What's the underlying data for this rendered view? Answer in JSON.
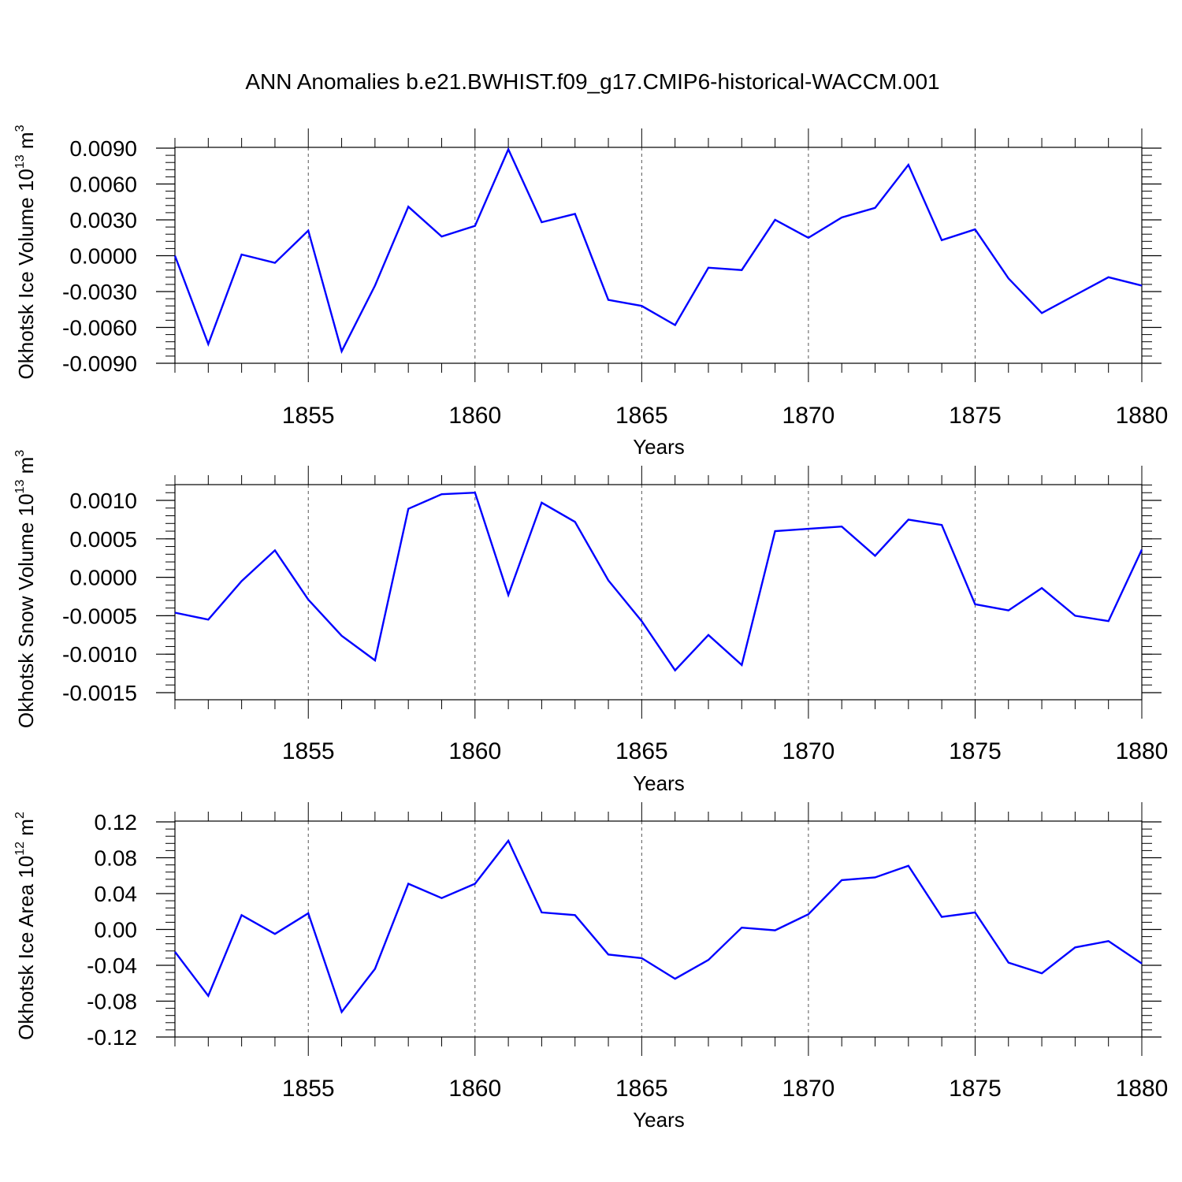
{
  "title": "ANN Anomalies b.e21.BWHIST.f09_g17.CMIP6-historical-WACCM.001",
  "line_color": "#0000ff",
  "chart_data": [
    {
      "type": "line",
      "ylabel_main": "Okhotsk Ice Volume 10",
      "ylabel_exp": "13",
      "ylabel_unit": " m",
      "ylabel_unit_exp": "3",
      "xlabel": "Years",
      "xlim": [
        1851,
        1880
      ],
      "ylim": [
        -0.009,
        0.009
      ],
      "yticks": [
        -0.009,
        -0.006,
        -0.003,
        0.0,
        0.003,
        0.006,
        0.009
      ],
      "ytick_labels": [
        "-0.0090",
        "-0.0060",
        "-0.0030",
        "0.0000",
        "0.0030",
        "0.0060",
        "0.0090"
      ],
      "yminor_step": 0.0006,
      "xticks": [
        1855,
        1860,
        1865,
        1870,
        1875,
        1880
      ],
      "xtick_labels": [
        "1855",
        "1860",
        "1865",
        "1870",
        "1875",
        "1880"
      ],
      "x": [
        1851,
        1852,
        1853,
        1854,
        1855,
        1856,
        1857,
        1858,
        1859,
        1860,
        1861,
        1862,
        1863,
        1864,
        1865,
        1866,
        1867,
        1868,
        1869,
        1870,
        1871,
        1872,
        1873,
        1874,
        1875,
        1876,
        1877,
        1878,
        1879,
        1880
      ],
      "values": [
        0.0,
        -0.0074,
        0.0001,
        -0.0006,
        0.0021,
        -0.008,
        -0.0025,
        0.0041,
        0.0016,
        0.0025,
        0.0089,
        0.0028,
        0.0035,
        -0.0037,
        -0.0042,
        -0.0058,
        -0.001,
        -0.0012,
        0.003,
        0.0015,
        0.0032,
        0.004,
        0.0076,
        0.0013,
        0.0022,
        -0.0019,
        -0.0048,
        -0.0033,
        -0.0018,
        -0.0025
      ]
    },
    {
      "type": "line",
      "ylabel_main": "Okhotsk Snow Volume 10",
      "ylabel_exp": "13",
      "ylabel_unit": " m",
      "ylabel_unit_exp": "3",
      "xlabel": "Years",
      "xlim": [
        1851,
        1880
      ],
      "ylim": [
        -0.0016,
        0.0012
      ],
      "yticks": [
        -0.0015,
        -0.001,
        -0.0005,
        0.0,
        0.0005,
        0.001
      ],
      "ytick_labels": [
        "-0.0015",
        "-0.0010",
        "-0.0005",
        "0.0000",
        "0.0005",
        "0.0010"
      ],
      "yminor_step": 0.0001,
      "xticks": [
        1855,
        1860,
        1865,
        1870,
        1875,
        1880
      ],
      "xtick_labels": [
        "1855",
        "1860",
        "1865",
        "1870",
        "1875",
        "1880"
      ],
      "x": [
        1851,
        1852,
        1853,
        1854,
        1855,
        1856,
        1857,
        1858,
        1859,
        1860,
        1861,
        1862,
        1863,
        1864,
        1865,
        1866,
        1867,
        1868,
        1869,
        1870,
        1871,
        1872,
        1873,
        1874,
        1875,
        1876,
        1877,
        1878,
        1879,
        1880
      ],
      "values": [
        -0.00046,
        -0.00055,
        -5e-05,
        0.00035,
        -0.00029,
        -0.00076,
        -0.00108,
        0.00089,
        0.00108,
        0.0011,
        -0.00023,
        0.00097,
        0.00072,
        -4e-05,
        -0.00057,
        -0.00121,
        -0.00075,
        -0.00114,
        0.0006,
        0.00063,
        0.00066,
        0.00028,
        0.00075,
        0.00068,
        -0.00035,
        -0.00043,
        -0.00014,
        -0.0005,
        -0.00057,
        0.00036
      ]
    },
    {
      "type": "line",
      "ylabel_main": "Okhotsk Ice Area 10",
      "ylabel_exp": "12",
      "ylabel_unit": " m",
      "ylabel_unit_exp": "2",
      "xlabel": "Years",
      "xlim": [
        1851,
        1880
      ],
      "ylim": [
        -0.12,
        0.12
      ],
      "yticks": [
        -0.12,
        -0.08,
        -0.04,
        0.0,
        0.04,
        0.08,
        0.12
      ],
      "ytick_labels": [
        "-0.12",
        "-0.08",
        "-0.04",
        "0.00",
        "0.04",
        "0.08",
        "0.12"
      ],
      "yminor_step": 0.008,
      "xticks": [
        1855,
        1860,
        1865,
        1870,
        1875,
        1880
      ],
      "xtick_labels": [
        "1855",
        "1860",
        "1865",
        "1870",
        "1875",
        "1880"
      ],
      "x": [
        1851,
        1852,
        1853,
        1854,
        1855,
        1856,
        1857,
        1858,
        1859,
        1860,
        1861,
        1862,
        1863,
        1864,
        1865,
        1866,
        1867,
        1868,
        1869,
        1870,
        1871,
        1872,
        1873,
        1874,
        1875,
        1876,
        1877,
        1878,
        1879,
        1880
      ],
      "values": [
        -0.025,
        -0.074,
        0.016,
        -0.005,
        0.018,
        -0.092,
        -0.044,
        0.051,
        0.035,
        0.051,
        0.099,
        0.019,
        0.016,
        -0.028,
        -0.032,
        -0.055,
        -0.034,
        0.002,
        -0.001,
        0.017,
        0.055,
        0.058,
        0.071,
        0.014,
        0.019,
        -0.037,
        -0.049,
        -0.02,
        -0.013,
        -0.038
      ]
    }
  ]
}
